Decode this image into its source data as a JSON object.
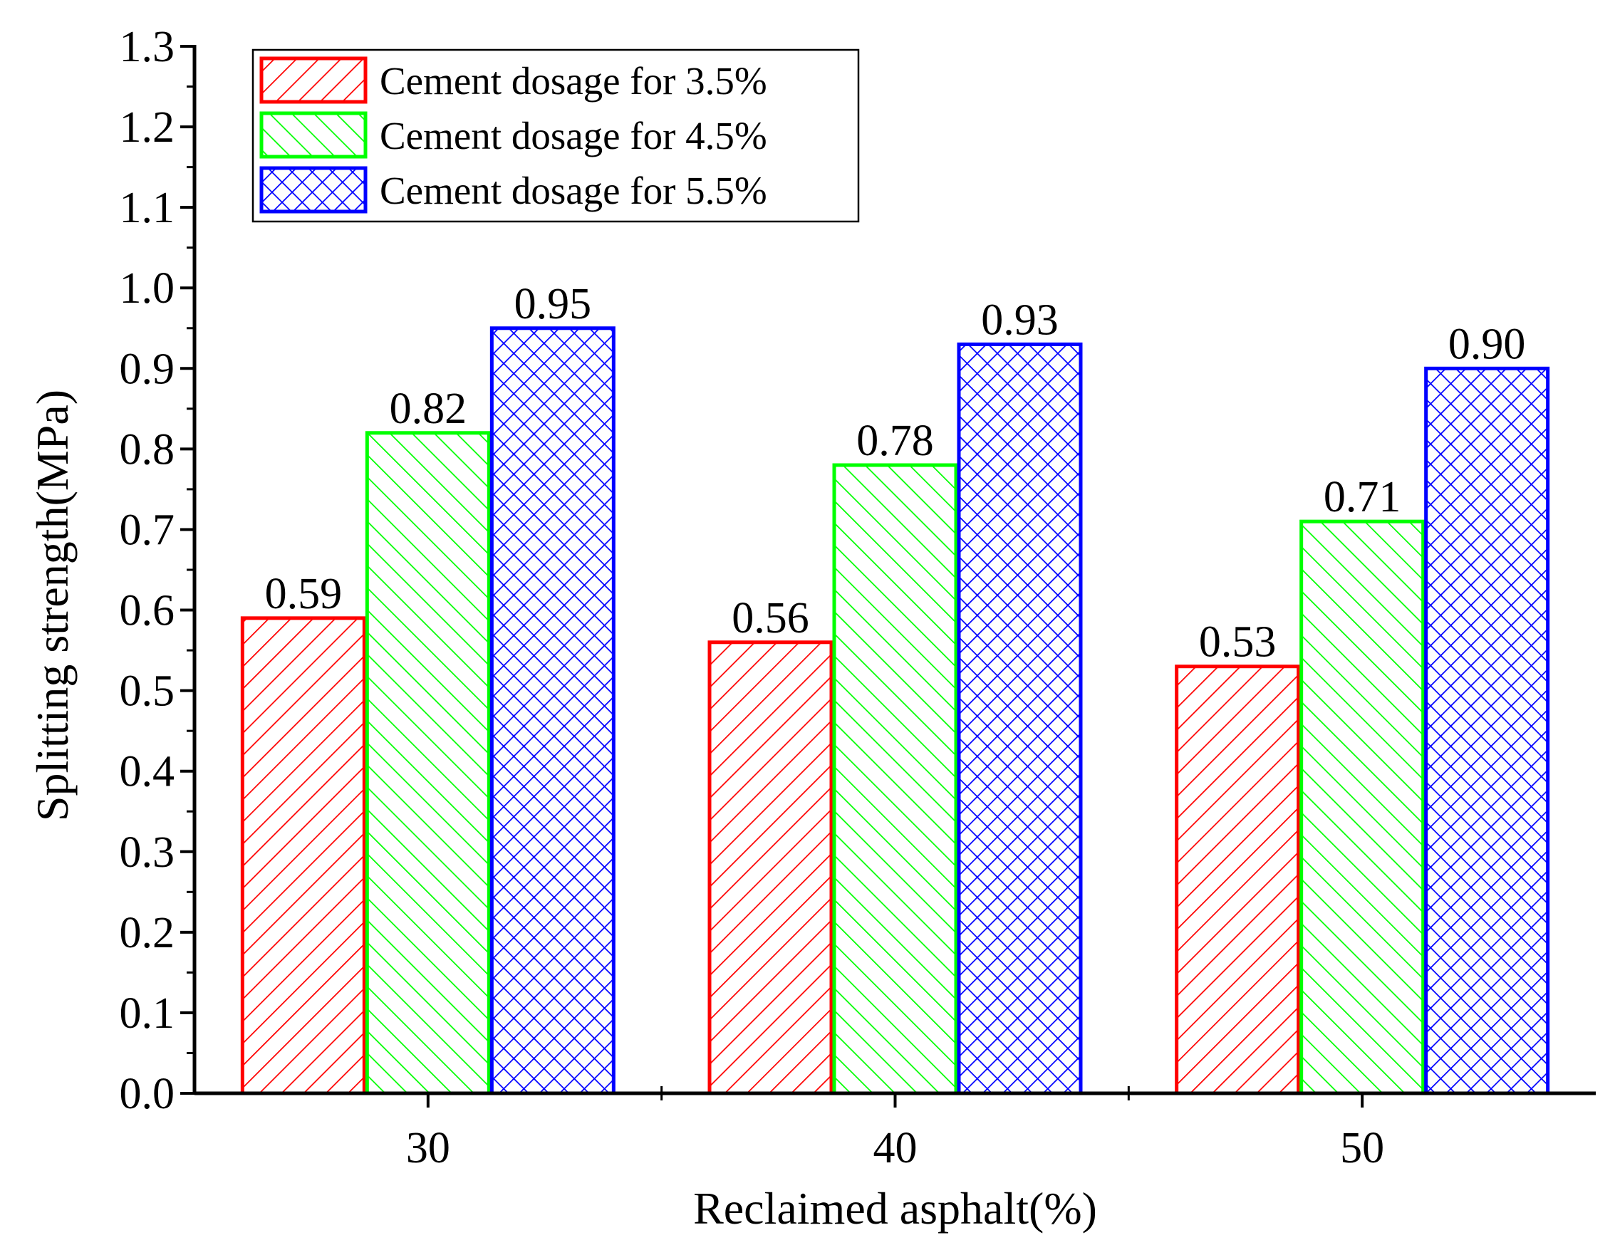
{
  "chart_data": {
    "type": "bar",
    "title": "",
    "xlabel": "Reclaimed asphalt(%)",
    "ylabel": "Splitting strength(MPa)",
    "categories": [
      "30",
      "40",
      "50"
    ],
    "ylim": [
      0.0,
      1.3
    ],
    "yticks": [
      "0.0",
      "0.1",
      "0.2",
      "0.3",
      "0.4",
      "0.5",
      "0.6",
      "0.7",
      "0.8",
      "0.9",
      "1.0",
      "1.1",
      "1.2",
      "1.3"
    ],
    "legend_position": "top-left",
    "grid": false,
    "series": [
      {
        "name": "Cement dosage for 3.5%",
        "color": "#ff0000",
        "pattern": "diagonal-up",
        "values": [
          0.59,
          0.56,
          0.53
        ],
        "labels": [
          "0.59",
          "0.56",
          "0.53"
        ]
      },
      {
        "name": "Cement dosage for 4.5%",
        "color": "#00ff00",
        "pattern": "diagonal-down",
        "values": [
          0.82,
          0.78,
          0.71
        ],
        "labels": [
          "0.82",
          "0.78",
          "0.71"
        ]
      },
      {
        "name": "Cement dosage for 5.5%",
        "color": "#0000ff",
        "pattern": "crosshatch",
        "values": [
          0.95,
          0.93,
          0.9
        ],
        "labels": [
          "0.95",
          "0.93",
          "0.90"
        ]
      }
    ]
  }
}
